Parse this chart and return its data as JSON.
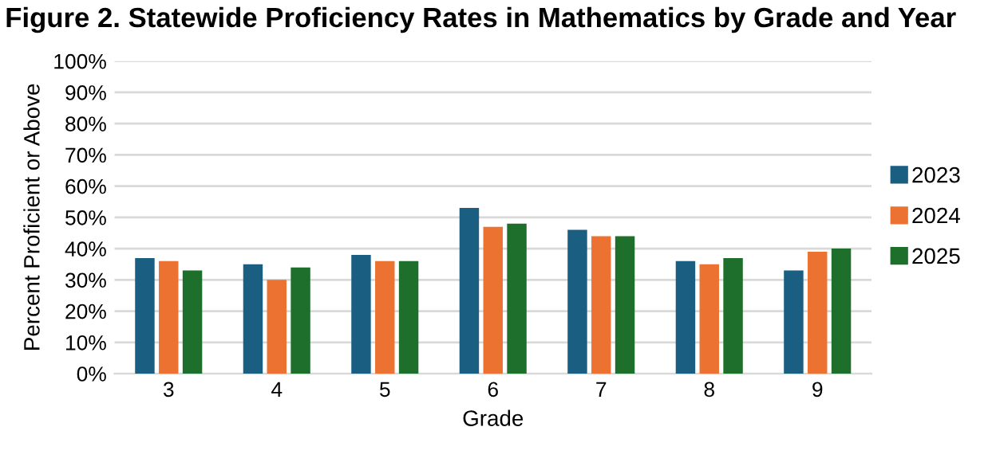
{
  "chart_data": {
    "type": "bar",
    "title": "Figure 2. Statewide Proficiency Rates in Mathematics by Grade and Year",
    "xlabel": "Grade",
    "ylabel": "Percent Proficient or Above",
    "categories": [
      "3",
      "4",
      "5",
      "6",
      "7",
      "8",
      "9"
    ],
    "series": [
      {
        "name": "2023",
        "color": "#1a5e82",
        "values": [
          37,
          35,
          38,
          53,
          46,
          36,
          33
        ]
      },
      {
        "name": "2024",
        "color": "#ec7232",
        "values": [
          36,
          30,
          36,
          47,
          44,
          35,
          39
        ]
      },
      {
        "name": "2025",
        "color": "#1e6e2c",
        "values": [
          33,
          34,
          36,
          48,
          44,
          37,
          40
        ]
      }
    ],
    "ylim": [
      0,
      100
    ],
    "yticks": [
      {
        "value": 0,
        "label": "0%"
      },
      {
        "value": 10,
        "label": "10%"
      },
      {
        "value": 20,
        "label": "20%"
      },
      {
        "value": 30,
        "label": "30%"
      },
      {
        "value": 40,
        "label": "40%"
      },
      {
        "value": 50,
        "label": "50%"
      },
      {
        "value": 60,
        "label": "60%"
      },
      {
        "value": 70,
        "label": "70%"
      },
      {
        "value": 80,
        "label": "80%"
      },
      {
        "value": 90,
        "label": "90%"
      },
      {
        "value": 100,
        "label": "100%"
      }
    ],
    "grid": "y",
    "legend": "right"
  }
}
